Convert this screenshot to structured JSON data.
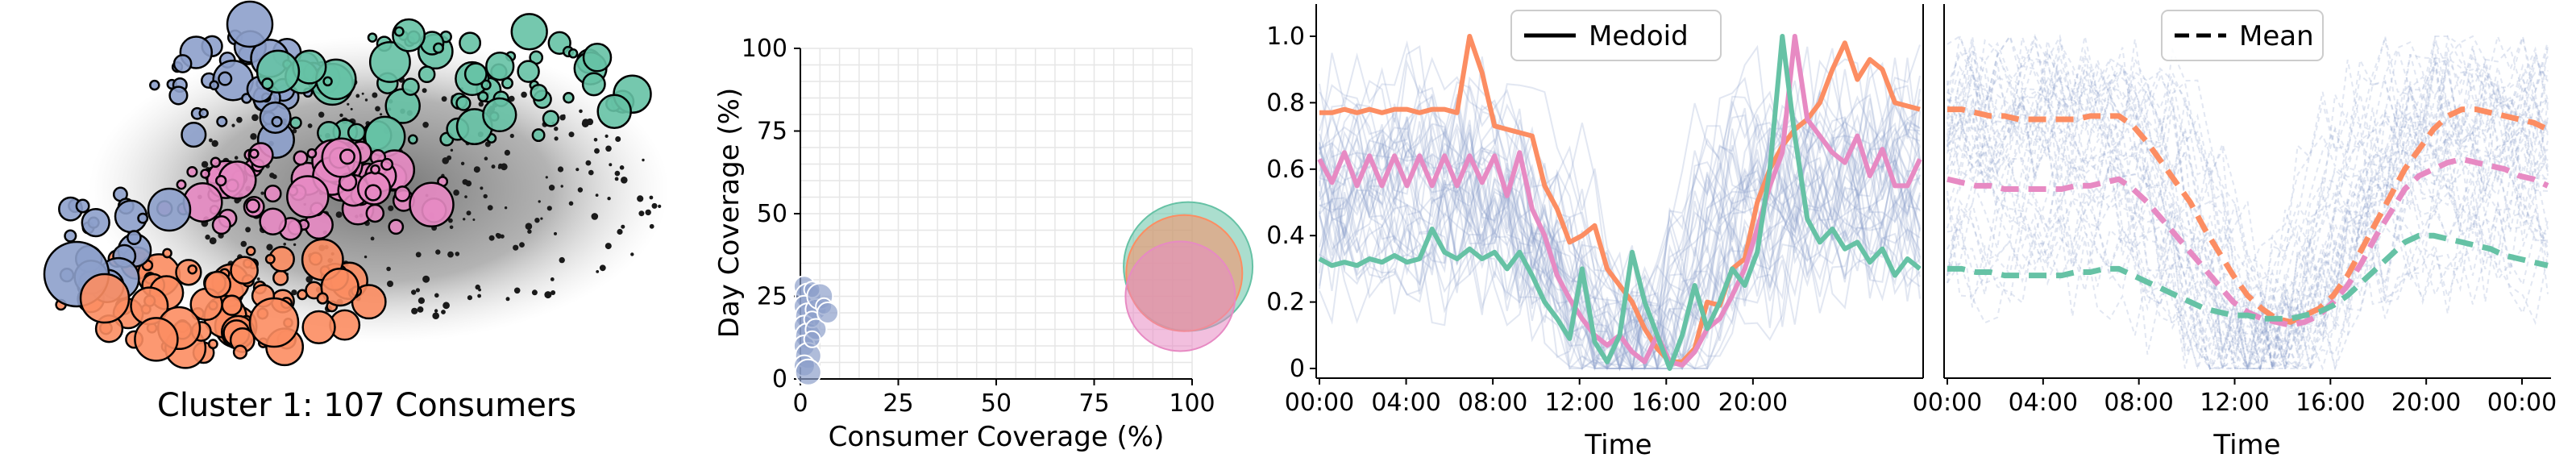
{
  "chart_data": [
    {
      "type": "network",
      "caption": "Cluster 1: 107 Consumers",
      "node_colors": [
        "#8da0cb",
        "#66c2a5",
        "#e78ac3",
        "#fc8d62"
      ]
    },
    {
      "type": "scatter",
      "xlabel": "Consumer Coverage (%)",
      "ylabel": "Day Coverage (%)",
      "xlim": [
        0,
        100
      ],
      "ylim": [
        0,
        100
      ],
      "xticks": [
        0,
        25,
        50,
        75,
        100
      ],
      "yticks": [
        0,
        25,
        50,
        75,
        100
      ],
      "grid": true,
      "series": [
        {
          "color": "#8da0cb",
          "points": [
            [
              1,
              28
            ],
            [
              2,
              25
            ],
            [
              3,
              27
            ],
            [
              1,
              22
            ],
            [
              2,
              19
            ],
            [
              4,
              21
            ],
            [
              1,
              16
            ],
            [
              2,
              13
            ],
            [
              3,
              18
            ],
            [
              1,
              10
            ],
            [
              2,
              7
            ],
            [
              1,
              4
            ],
            [
              5,
              25
            ],
            [
              6,
              22
            ],
            [
              4,
              15
            ],
            [
              3,
              12
            ],
            [
              7,
              20
            ],
            [
              2,
              2
            ]
          ]
        },
        {
          "color": "#66c2a5",
          "points": [
            [
              99,
              34
            ]
          ]
        },
        {
          "color": "#fc8d62",
          "points": [
            [
              98,
              32
            ]
          ]
        },
        {
          "color": "#e78ac3",
          "points": [
            [
              97,
              25
            ]
          ]
        }
      ]
    },
    {
      "type": "line",
      "xlabel": "Time",
      "xticks": [
        "00:00",
        "04:00",
        "08:00",
        "12:00",
        "16:00",
        "20:00"
      ],
      "yticks": [
        0,
        0.2,
        0.4,
        0.6,
        0.8,
        1.0
      ],
      "ylim": [
        0,
        1.0
      ],
      "legend": "Medoid",
      "legend_position": "top-center",
      "series": [
        {
          "color": "#fc8d62",
          "values": [
            0.77,
            0.77,
            0.78,
            0.77,
            0.78,
            0.77,
            0.78,
            0.78,
            0.77,
            0.78,
            0.78,
            0.77,
            1.0,
            0.89,
            0.73,
            0.72,
            0.71,
            0.7,
            0.55,
            0.48,
            0.38,
            0.4,
            0.43,
            0.3,
            0.25,
            0.2,
            0.12,
            0.06,
            0.02,
            0.02,
            0.06,
            0.2,
            0.19,
            0.3,
            0.33,
            0.5,
            0.6,
            0.67,
            0.72,
            0.75,
            0.8,
            0.9,
            0.98,
            0.87,
            0.93,
            0.9,
            0.8,
            0.79,
            0.78
          ]
        },
        {
          "color": "#e78ac3",
          "values": [
            0.63,
            0.56,
            0.65,
            0.55,
            0.64,
            0.55,
            0.64,
            0.55,
            0.64,
            0.55,
            0.64,
            0.55,
            0.64,
            0.56,
            0.64,
            0.52,
            0.65,
            0.48,
            0.4,
            0.28,
            0.21,
            0.15,
            0.1,
            0.07,
            0.1,
            0.05,
            0.02,
            0.1,
            0.02,
            0.01,
            0.05,
            0.12,
            0.15,
            0.22,
            0.3,
            0.42,
            0.55,
            0.65,
            1.0,
            0.75,
            0.7,
            0.65,
            0.62,
            0.7,
            0.58,
            0.66,
            0.55,
            0.55,
            0.63
          ]
        },
        {
          "color": "#66c2a5",
          "values": [
            0.33,
            0.31,
            0.32,
            0.31,
            0.33,
            0.32,
            0.34,
            0.32,
            0.33,
            0.42,
            0.35,
            0.33,
            0.36,
            0.33,
            0.35,
            0.3,
            0.35,
            0.28,
            0.2,
            0.15,
            0.09,
            0.3,
            0.08,
            0.02,
            0.1,
            0.35,
            0.2,
            0.1,
            0.0,
            0.1,
            0.25,
            0.12,
            0.2,
            0.3,
            0.25,
            0.35,
            0.6,
            1.0,
            0.7,
            0.45,
            0.38,
            0.42,
            0.36,
            0.38,
            0.32,
            0.36,
            0.28,
            0.33,
            0.3
          ]
        }
      ]
    },
    {
      "type": "line",
      "xlabel": "Time",
      "xticks": [
        "00:00",
        "04:00",
        "08:00",
        "12:00",
        "16:00",
        "20:00",
        "00:00"
      ],
      "legend": "Mean",
      "legend_position": "top-center",
      "series": [
        {
          "color": "#fc8d62",
          "values": [
            0.78,
            0.78,
            0.77,
            0.76,
            0.76,
            0.75,
            0.75,
            0.75,
            0.75,
            0.75,
            0.76,
            0.76,
            0.76,
            0.73,
            0.68,
            0.62,
            0.56,
            0.5,
            0.42,
            0.35,
            0.28,
            0.22,
            0.18,
            0.15,
            0.14,
            0.16,
            0.18,
            0.22,
            0.28,
            0.36,
            0.44,
            0.52,
            0.6,
            0.66,
            0.72,
            0.76,
            0.78,
            0.78,
            0.77,
            0.76,
            0.75,
            0.74,
            0.72
          ]
        },
        {
          "color": "#e78ac3",
          "values": [
            0.57,
            0.56,
            0.55,
            0.55,
            0.54,
            0.54,
            0.54,
            0.54,
            0.54,
            0.55,
            0.55,
            0.56,
            0.57,
            0.54,
            0.5,
            0.45,
            0.4,
            0.35,
            0.3,
            0.25,
            0.2,
            0.17,
            0.15,
            0.14,
            0.13,
            0.14,
            0.16,
            0.2,
            0.25,
            0.32,
            0.4,
            0.47,
            0.54,
            0.58,
            0.6,
            0.62,
            0.63,
            0.62,
            0.61,
            0.6,
            0.58,
            0.57,
            0.55
          ]
        },
        {
          "color": "#66c2a5",
          "values": [
            0.3,
            0.3,
            0.29,
            0.29,
            0.28,
            0.28,
            0.28,
            0.28,
            0.28,
            0.29,
            0.29,
            0.3,
            0.3,
            0.28,
            0.26,
            0.24,
            0.22,
            0.2,
            0.18,
            0.17,
            0.16,
            0.16,
            0.15,
            0.15,
            0.15,
            0.16,
            0.17,
            0.19,
            0.22,
            0.26,
            0.3,
            0.34,
            0.38,
            0.4,
            0.4,
            0.39,
            0.38,
            0.37,
            0.36,
            0.34,
            0.33,
            0.32,
            0.31
          ]
        }
      ]
    }
  ]
}
